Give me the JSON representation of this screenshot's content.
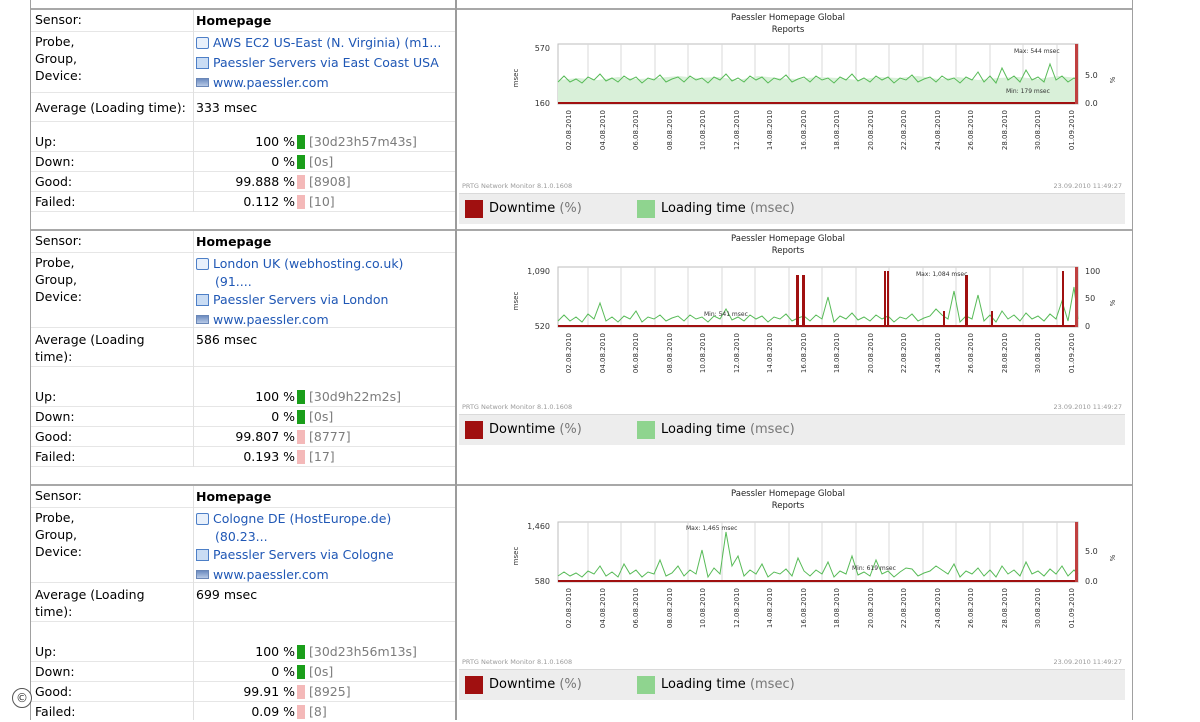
{
  "labels": {
    "sensor": "Sensor:",
    "probe_group_device": [
      "Probe,",
      "Group,",
      "Device:"
    ],
    "average_short": "Average (Loading time):",
    "average_long": [
      "Average (Loading",
      "time):"
    ],
    "up": "Up:",
    "down": "Down:",
    "good": "Good:",
    "failed": "Failed:"
  },
  "colors": {
    "up_down_bar": "#1a9e1a",
    "good_failed_bar": "#f4b9b9",
    "downtime": "#a01010",
    "loading": "#8fd48f",
    "link": "#1f57b5"
  },
  "blocks": [
    {
      "sensor": "Homepage",
      "probe": "AWS EC2 US-East (N. Virginia) (m1...",
      "probe_cont": "",
      "group": "Paessler Servers via East Coast USA",
      "device": "www.paessler.com",
      "average": "333 msec",
      "up": {
        "pct": "100 %",
        "extra": "[30d23h57m43s]"
      },
      "down": {
        "pct": "0 %",
        "extra": "[0s]"
      },
      "good": {
        "pct": "99.888 %",
        "extra": "[8908]"
      },
      "failed": {
        "pct": "0.112 %",
        "extra": "[10]"
      },
      "chart": {
        "title": [
          "Paessler Homepage Global",
          "Reports"
        ],
        "y_left_ticks": [
          "570",
          "160"
        ],
        "y_left_label": "msec",
        "y_right_ticks": [
          "5.0",
          "0.0"
        ],
        "y_right_label": "%",
        "max_label": "Max: 544 msec",
        "min_label": "Min: 179 msec",
        "x_ticks": [
          "02.08.2010",
          "04.08.2010",
          "06.08.2010",
          "08.08.2010",
          "10.08.2010",
          "12.08.2010",
          "14.08.2010",
          "16.08.2010",
          "18.08.2010",
          "20.08.2010",
          "22.08.2010",
          "24.08.2010",
          "26.08.2010",
          "28.08.2010",
          "30.08.2010",
          "01.09.2010"
        ],
        "footer_left": "PRTG Network Monitor 8.1.0.1608",
        "footer_right": "23.09.2010 11:49:27",
        "legend_downtime": "Downtime",
        "legend_downtime_unit": "(%)",
        "legend_loading": "Loading time",
        "legend_loading_unit": "(msec)"
      }
    },
    {
      "sensor": "Homepage",
      "probe": "London UK (webhosting.co.uk)",
      "probe_cont": "(91....",
      "group": "Paessler Servers via London",
      "device": "www.paessler.com",
      "average": "586 msec",
      "up": {
        "pct": "100 %",
        "extra": "[30d9h22m2s]"
      },
      "down": {
        "pct": "0 %",
        "extra": "[0s]"
      },
      "good": {
        "pct": "99.807 %",
        "extra": "[8777]"
      },
      "failed": {
        "pct": "0.193 %",
        "extra": "[17]"
      },
      "chart": {
        "title": [
          "Paessler Homepage Global",
          "Reports"
        ],
        "y_left_ticks": [
          "1,090",
          "520"
        ],
        "y_left_label": "msec",
        "y_right_ticks": [
          "100",
          "50",
          "0"
        ],
        "y_right_label": "%",
        "max_label": "Max: 1,084 msec",
        "min_label": "Min: 541 msec",
        "x_ticks": [
          "02.08.2010",
          "04.08.2010",
          "06.08.2010",
          "08.08.2010",
          "10.08.2010",
          "12.08.2010",
          "14.08.2010",
          "16.08.2010",
          "18.08.2010",
          "20.08.2010",
          "22.08.2010",
          "24.08.2010",
          "26.08.2010",
          "28.08.2010",
          "30.08.2010",
          "01.09.2010"
        ],
        "footer_left": "PRTG Network Monitor 8.1.0.1608",
        "footer_right": "23.09.2010 11:49:27",
        "legend_downtime": "Downtime",
        "legend_downtime_unit": "(%)",
        "legend_loading": "Loading time",
        "legend_loading_unit": "(msec)"
      }
    },
    {
      "sensor": "Homepage",
      "probe": "Cologne DE (HostEurope.de)",
      "probe_cont": "(80.23...",
      "group": "Paessler Servers via Cologne",
      "device": "www.paessler.com",
      "average": "699 msec",
      "up": {
        "pct": "100 %",
        "extra": "[30d23h56m13s]"
      },
      "down": {
        "pct": "0 %",
        "extra": "[0s]"
      },
      "good": {
        "pct": "99.91 %",
        "extra": "[8925]"
      },
      "failed": {
        "pct": "0.09 %",
        "extra": "[8]"
      },
      "chart": {
        "title": [
          "Paessler Homepage Global",
          "Reports"
        ],
        "y_left_ticks": [
          "1,460",
          "580"
        ],
        "y_left_label": "msec",
        "y_right_ticks": [
          "5.0",
          "0.0"
        ],
        "y_right_label": "%",
        "max_label": "Max: 1,465 msec",
        "min_label": "Min: 619 msec",
        "x_ticks": [
          "02.08.2010",
          "04.08.2010",
          "06.08.2010",
          "08.08.2010",
          "10.08.2010",
          "12.08.2010",
          "14.08.2010",
          "16.08.2010",
          "18.08.2010",
          "20.08.2010",
          "22.08.2010",
          "24.08.2010",
          "26.08.2010",
          "28.08.2010",
          "30.08.2010",
          "01.09.2010"
        ],
        "footer_left": "PRTG Network Monitor 8.1.0.1608",
        "footer_right": "23.09.2010 11:49:27",
        "legend_downtime": "Downtime",
        "legend_downtime_unit": "(%)",
        "legend_loading": "Loading time",
        "legend_loading_unit": "(msec)"
      }
    }
  ],
  "copyright_symbol": "©"
}
